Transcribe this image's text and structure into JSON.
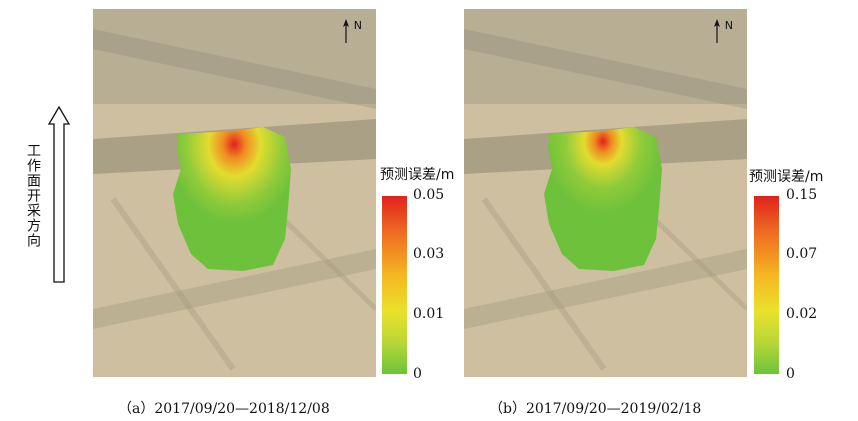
{
  "direction_label": "工作面开采方向",
  "north_label": "N",
  "panels": [
    {
      "caption": "（a）2017/09/20—2018/12/08",
      "colorbar": {
        "title": "预测误差/m",
        "ticks": [
          "0.05",
          "0.03",
          "0.01",
          "0"
        ],
        "colors": [
          "#e0221d",
          "#ee6a22",
          "#f4b823",
          "#e9e22c",
          "#b9d737",
          "#6bc43a"
        ]
      }
    },
    {
      "caption": "（b）2017/09/20—2019/02/18",
      "colorbar": {
        "title": "预测误差/m",
        "ticks": [
          "0.15",
          "0.07",
          "0.02",
          "0"
        ],
        "colors": [
          "#e0221d",
          "#ee6a22",
          "#f4b823",
          "#e9e22c",
          "#b9d737",
          "#6bc43a"
        ]
      }
    }
  ]
}
